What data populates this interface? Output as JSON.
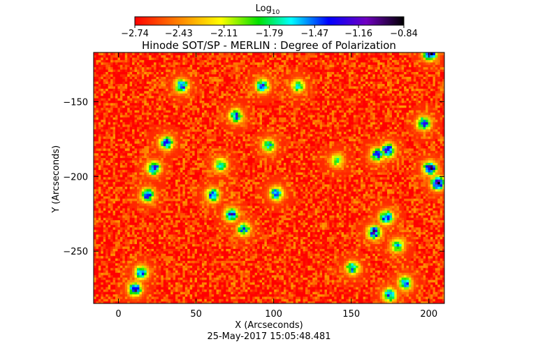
{
  "chart_data": {
    "type": "heatmap",
    "title": "Hinode SOT/SP - MERLIN : Degree of Polarization",
    "xlabel": "X (Arcseconds)",
    "ylabel": "Y (Arcseconds)",
    "timestamp": "25-May-2017 15:05:48.481",
    "xlim": [
      -16,
      210
    ],
    "ylim": [
      -285,
      -117
    ],
    "x_ticks": [
      0,
      50,
      100,
      150,
      200
    ],
    "x_tick_labels": [
      "0",
      "50",
      "100",
      "150",
      "200"
    ],
    "y_ticks": [
      -150,
      -200,
      -250
    ],
    "y_tick_labels": [
      "−150",
      "−200",
      "−250"
    ],
    "colorbar": {
      "title": "Log",
      "title_subscript": "10",
      "range": [
        -2.74,
        -0.84
      ],
      "colormap": "rainbow (red → yellow → green → cyan → blue → violet → black)",
      "ticks": [
        -2.74,
        -2.43,
        -2.11,
        -1.79,
        -1.47,
        -1.16,
        -0.84
      ],
      "tick_labels": [
        "−2.74",
        "−2.43",
        "−2.11",
        "−1.79",
        "−1.47",
        "−1.16",
        "−0.84"
      ]
    },
    "background_level": -2.65,
    "features": [
      {
        "x": 22,
        "y": -195,
        "peak": -1.2
      },
      {
        "x": 30,
        "y": -178,
        "peak": -1.3
      },
      {
        "x": 40,
        "y": -140,
        "peak": -1.3
      },
      {
        "x": 18,
        "y": -213,
        "peak": -1.3
      },
      {
        "x": 14,
        "y": -265,
        "peak": -1.4
      },
      {
        "x": 10,
        "y": -276,
        "peak": -1.2
      },
      {
        "x": 75,
        "y": -160,
        "peak": -1.4
      },
      {
        "x": 65,
        "y": -193,
        "peak": -1.6
      },
      {
        "x": 60,
        "y": -213,
        "peak": -1.4
      },
      {
        "x": 72,
        "y": -226,
        "peak": -1.3
      },
      {
        "x": 80,
        "y": -236,
        "peak": -1.5
      },
      {
        "x": 92,
        "y": -140,
        "peak": -1.4
      },
      {
        "x": 96,
        "y": -180,
        "peak": -1.6
      },
      {
        "x": 101,
        "y": -212,
        "peak": -1.4
      },
      {
        "x": 115,
        "y": -140,
        "peak": -1.7
      },
      {
        "x": 140,
        "y": -190,
        "peak": -1.8
      },
      {
        "x": 166,
        "y": -186,
        "peak": -1.3
      },
      {
        "x": 173,
        "y": -183,
        "peak": -1.1
      },
      {
        "x": 196,
        "y": -165,
        "peak": -1.3
      },
      {
        "x": 200,
        "y": -195,
        "peak": -1.1
      },
      {
        "x": 205,
        "y": -205,
        "peak": -1.0
      },
      {
        "x": 172,
        "y": -228,
        "peak": -1.2
      },
      {
        "x": 164,
        "y": -238,
        "peak": -1.2
      },
      {
        "x": 179,
        "y": -247,
        "peak": -1.6
      },
      {
        "x": 150,
        "y": -262,
        "peak": -1.5
      },
      {
        "x": 184,
        "y": -272,
        "peak": -1.4
      },
      {
        "x": 174,
        "y": -280,
        "peak": -1.4
      },
      {
        "x": 200,
        "y": -118,
        "peak": -0.9
      }
    ]
  }
}
